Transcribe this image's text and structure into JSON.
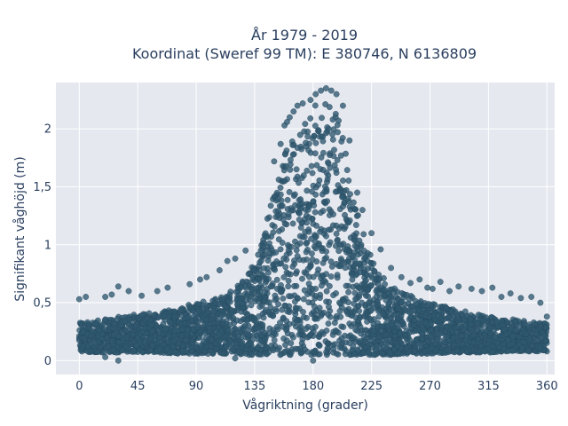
{
  "chart_data": {
    "type": "scatter",
    "title_line1": "År 1979 - 2019",
    "title_line2": "Koordinat (Sweref 99 TM): E 380746, N 6136809",
    "xlabel": "Vågriktning (grader)",
    "ylabel": "Signifikant våghöjd (m)",
    "xlim": [
      -18,
      366
    ],
    "ylim": [
      -0.12,
      2.4
    ],
    "x_ticks": [
      {
        "value": 0,
        "label": "0"
      },
      {
        "value": 45,
        "label": "45"
      },
      {
        "value": 90,
        "label": "90"
      },
      {
        "value": 135,
        "label": "135"
      },
      {
        "value": 180,
        "label": "180"
      },
      {
        "value": 225,
        "label": "225"
      },
      {
        "value": 270,
        "label": "270"
      },
      {
        "value": 315,
        "label": "315"
      },
      {
        "value": 360,
        "label": "360"
      }
    ],
    "y_ticks": [
      {
        "value": 0,
        "label": "0"
      },
      {
        "value": 0.5,
        "label": "0,5"
      },
      {
        "value": 1,
        "label": "1"
      },
      {
        "value": 1.5,
        "label": "1,5"
      },
      {
        "value": 2,
        "label": "2"
      }
    ],
    "grid": true,
    "colors": {
      "marker": "#2f5870",
      "marker_edge": "#24475c",
      "plot_bg": "#e5e8ef",
      "grid": "#ffffff",
      "text": "#2a3f5f"
    },
    "envelope": {
      "x": [
        0,
        10,
        20,
        30,
        45,
        60,
        75,
        90,
        100,
        110,
        120,
        130,
        135,
        140,
        145,
        150,
        155,
        160,
        165,
        170,
        175,
        180,
        185,
        190,
        195,
        200,
        205,
        210,
        215,
        220,
        225,
        230,
        240,
        250,
        260,
        270,
        285,
        300,
        315,
        330,
        345,
        360
      ],
      "y_lower": [
        0.08,
        0.07,
        0.07,
        0.07,
        0.07,
        0.07,
        0.06,
        0.06,
        0.06,
        0.06,
        0.06,
        0.05,
        0.05,
        0.05,
        0.05,
        0.05,
        0.05,
        0.05,
        0.05,
        0.05,
        0.05,
        0.05,
        0.05,
        0.05,
        0.05,
        0.05,
        0.05,
        0.05,
        0.05,
        0.05,
        0.05,
        0.05,
        0.05,
        0.06,
        0.06,
        0.06,
        0.07,
        0.07,
        0.07,
        0.08,
        0.08,
        0.08
      ],
      "y_upper": [
        0.34,
        0.34,
        0.36,
        0.38,
        0.4,
        0.42,
        0.45,
        0.5,
        0.52,
        0.55,
        0.62,
        0.75,
        0.85,
        1.0,
        1.25,
        1.5,
        1.7,
        1.85,
        1.92,
        1.98,
        2.1,
        2.2,
        2.22,
        2.25,
        2.2,
        2.1,
        1.8,
        1.5,
        1.25,
        1.05,
        0.9,
        0.78,
        0.64,
        0.58,
        0.54,
        0.5,
        0.46,
        0.42,
        0.38,
        0.36,
        0.34,
        0.32
      ]
    },
    "outliers": [
      [
        0,
        0.53
      ],
      [
        5,
        0.55
      ],
      [
        20,
        0.55
      ],
      [
        25,
        0.57
      ],
      [
        30,
        0.64
      ],
      [
        38,
        0.6
      ],
      [
        48,
        0.56
      ],
      [
        60,
        0.6
      ],
      [
        68,
        0.63
      ],
      [
        85,
        0.66
      ],
      [
        93,
        0.7
      ],
      [
        98,
        0.72
      ],
      [
        108,
        0.78
      ],
      [
        114,
        0.86
      ],
      [
        120,
        0.88
      ],
      [
        128,
        0.95
      ],
      [
        150,
        1.72
      ],
      [
        155,
        1.87
      ],
      [
        158,
        2.03
      ],
      [
        160,
        2.06
      ],
      [
        162,
        2.1
      ],
      [
        165,
        2.15
      ],
      [
        168,
        2.2
      ],
      [
        172,
        2.22
      ],
      [
        178,
        2.25
      ],
      [
        182,
        2.3
      ],
      [
        186,
        2.33
      ],
      [
        190,
        2.35
      ],
      [
        194,
        2.33
      ],
      [
        198,
        2.3
      ],
      [
        203,
        2.2
      ],
      [
        208,
        1.9
      ],
      [
        214,
        1.45
      ],
      [
        218,
        1.3
      ],
      [
        225,
        1.1
      ],
      [
        232,
        0.96
      ],
      [
        240,
        0.8
      ],
      [
        248,
        0.72
      ],
      [
        255,
        0.67
      ],
      [
        262,
        0.7
      ],
      [
        268,
        0.63
      ],
      [
        272,
        0.62
      ],
      [
        278,
        0.68
      ],
      [
        285,
        0.6
      ],
      [
        292,
        0.64
      ],
      [
        302,
        0.62
      ],
      [
        310,
        0.6
      ],
      [
        318,
        0.63
      ],
      [
        325,
        0.55
      ],
      [
        332,
        0.58
      ],
      [
        340,
        0.54
      ],
      [
        348,
        0.55
      ],
      [
        355,
        0.5
      ],
      [
        360,
        0.38
      ],
      [
        30,
        0.0
      ],
      [
        20,
        0.03
      ],
      [
        180,
        0.0
      ],
      [
        120,
        0.02
      ]
    ]
  }
}
